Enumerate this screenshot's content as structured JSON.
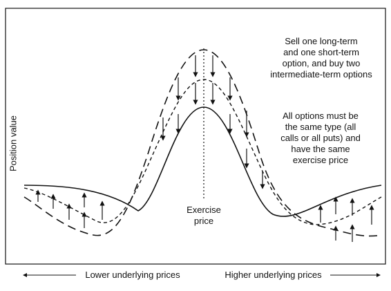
{
  "labels": {
    "y_axis": "Position value",
    "exercise_price": "Exercise\nprice",
    "note_strategy": "Sell one long-term\nand one short-term\noption, and buy two\nintermediate-term options",
    "note_requirement": "All options must be\nthe same type (all\ncalls or all puts) and\nhave the same\nexercise price",
    "lower_prices": "Lower underlying prices",
    "higher_prices": "Higher underlying prices"
  },
  "legend": {
    "curves": [
      "long-dash",
      "short-dash",
      "solid"
    ]
  },
  "colors": {
    "ink": "#111111",
    "background": "#ffffff"
  }
}
